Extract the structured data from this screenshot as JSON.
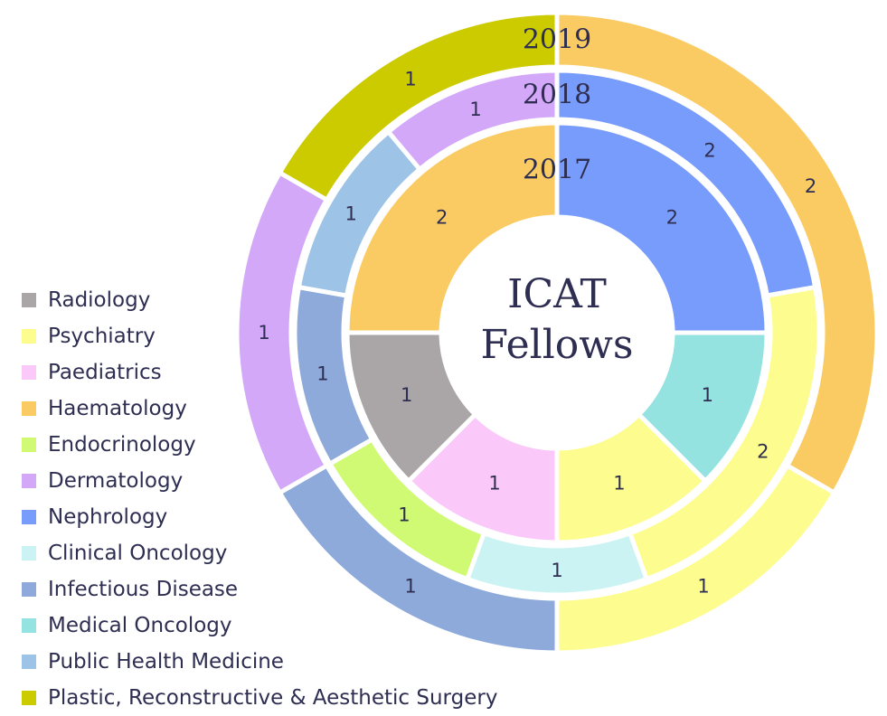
{
  "chart_data": {
    "type": "pie",
    "subtype": "multi-ring donut",
    "title": "ICAT Fellows",
    "categories": [
      {
        "name": "Radiology",
        "color": "#aaa5a6"
      },
      {
        "name": "Psychiatry",
        "color": "#fdfc8e"
      },
      {
        "name": "Paediatrics",
        "color": "#fac9fa"
      },
      {
        "name": "Haematology",
        "color": "#fbcb63"
      },
      {
        "name": "Endocrinology",
        "color": "#d1fa74"
      },
      {
        "name": "Dermatology",
        "color": "#d4a8f8"
      },
      {
        "name": "Nephrology",
        "color": "#789cfb"
      },
      {
        "name": "Clinical Oncology",
        "color": "#cbf3f3"
      },
      {
        "name": "Infectious Disease",
        "color": "#8eaadb"
      },
      {
        "name": "Medical Oncology",
        "color": "#95e3e1"
      },
      {
        "name": "Public Health Medicine",
        "color": "#9dc3e6"
      },
      {
        "name": "Plastic, Reconstructive & Aesthetic Surgery",
        "color": "#cccb00"
      }
    ],
    "series": [
      {
        "name": "2017",
        "slices": [
          {
            "category": "Nephrology",
            "value": 2
          },
          {
            "category": "Medical Oncology",
            "value": 1
          },
          {
            "category": "Psychiatry",
            "value": 1
          },
          {
            "category": "Paediatrics",
            "value": 1
          },
          {
            "category": "Radiology",
            "value": 1
          },
          {
            "category": "Haematology",
            "value": 2
          }
        ]
      },
      {
        "name": "2018",
        "slices": [
          {
            "category": "Nephrology",
            "value": 2
          },
          {
            "category": "Psychiatry",
            "value": 2
          },
          {
            "category": "Clinical Oncology",
            "value": 1
          },
          {
            "category": "Endocrinology",
            "value": 1
          },
          {
            "category": "Infectious Disease",
            "value": 1
          },
          {
            "category": "Public Health Medicine",
            "value": 1
          },
          {
            "category": "Dermatology",
            "value": 1
          }
        ]
      },
      {
        "name": "2019",
        "slices": [
          {
            "category": "Haematology",
            "value": 2
          },
          {
            "category": "Psychiatry",
            "value": 1
          },
          {
            "category": "Infectious Disease",
            "value": 1
          },
          {
            "category": "Dermatology",
            "value": 1
          },
          {
            "category": "Plastic, Reconstructive & Aesthetic Surgery",
            "value": 1
          }
        ]
      }
    ],
    "legend_position": "left"
  }
}
